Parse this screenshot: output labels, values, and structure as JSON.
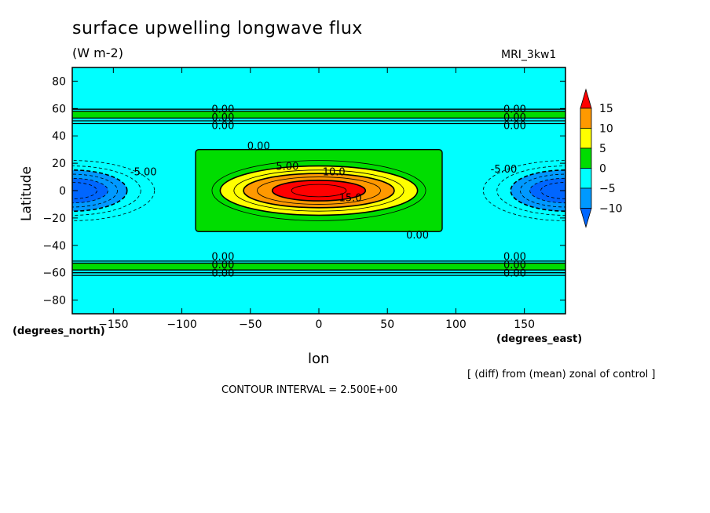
{
  "header": {
    "title": "surface upwelling longwave flux",
    "units": "(W m-2)",
    "model": "MRI_3kw1"
  },
  "footer": {
    "note": "[ (diff) from (mean) zonal of control ]",
    "contour_interval": "CONTOUR INTERVAL = 2.500E+00"
  },
  "colors": {
    "bg": "#00ffff",
    "neg5": "#00ffff",
    "neg10": "#0099ff",
    "neg15": "#0066ff",
    "zero5": "#00dd00",
    "p5_10": "#ffff00",
    "p10_15": "#ff9900",
    "p15": "#ff0000"
  },
  "chart_data": {
    "type": "contour",
    "xlabel": "lon",
    "ylabel": "Latitude",
    "x_unit": "(degrees_east)",
    "y_unit": "(degrees_north)",
    "xlim": [
      -180,
      180
    ],
    "ylim": [
      -90,
      90
    ],
    "x_ticks": [
      -150,
      -100,
      -50,
      0,
      50,
      100,
      150
    ],
    "y_ticks": [
      -80,
      -60,
      -40,
      -20,
      0,
      20,
      40,
      60,
      80
    ],
    "contour_interval": 2.5,
    "colorbar": {
      "labels": [
        "15",
        "10",
        "5",
        "0",
        "-5",
        "-10"
      ],
      "colors": [
        "#ff0000",
        "#ff9900",
        "#ffff00",
        "#00dd00",
        "#00ffff",
        "#0099ff",
        "#0066ff"
      ]
    },
    "features": [
      {
        "kind": "warm_anomaly",
        "center": [
          0,
          0
        ],
        "lon_range": [
          -90,
          90
        ],
        "lat_range": [
          -30,
          30
        ],
        "max_level": 15
      },
      {
        "kind": "cold_anomaly",
        "center": [
          -180,
          0
        ],
        "lon_range": [
          -180,
          -120
        ],
        "lat_range": [
          -20,
          20
        ],
        "min_level": -10
      },
      {
        "kind": "cold_anomaly",
        "center": [
          180,
          0
        ],
        "lon_range": [
          120,
          180
        ],
        "lat_range": [
          -20,
          20
        ],
        "min_level": -10
      },
      {
        "kind": "zero_band",
        "lat_range": [
          53,
          58
        ]
      },
      {
        "kind": "zero_band",
        "lat_range": [
          -58,
          -53
        ]
      }
    ],
    "contour_labels": [
      {
        "text": "0.00",
        "x": -70,
        "y": 60
      },
      {
        "text": "0.00",
        "x": -70,
        "y": 54
      },
      {
        "text": "0.00",
        "x": -70,
        "y": 48
      },
      {
        "text": "0.00",
        "x": 143,
        "y": 60
      },
      {
        "text": "0.00",
        "x": 143,
        "y": 54
      },
      {
        "text": "0.00",
        "x": 143,
        "y": 48
      },
      {
        "text": "0.00",
        "x": -44,
        "y": 33
      },
      {
        "text": "5.00",
        "x": -23,
        "y": 18
      },
      {
        "text": "10.0",
        "x": 11,
        "y": 14
      },
      {
        "text": "15.0",
        "x": 23,
        "y": -5
      },
      {
        "text": "0.00",
        "x": 72,
        "y": -32
      },
      {
        "text": "-5.00",
        "x": -128,
        "y": 14
      },
      {
        "text": "-5.00",
        "x": 135,
        "y": 16
      },
      {
        "text": "0.00",
        "x": -70,
        "y": -48
      },
      {
        "text": "0.00",
        "x": -70,
        "y": -54
      },
      {
        "text": "0.00",
        "x": -70,
        "y": -60
      },
      {
        "text": "0.00",
        "x": 143,
        "y": -48
      },
      {
        "text": "0.00",
        "x": 143,
        "y": -54
      },
      {
        "text": "0.00",
        "x": 143,
        "y": -60
      }
    ]
  }
}
